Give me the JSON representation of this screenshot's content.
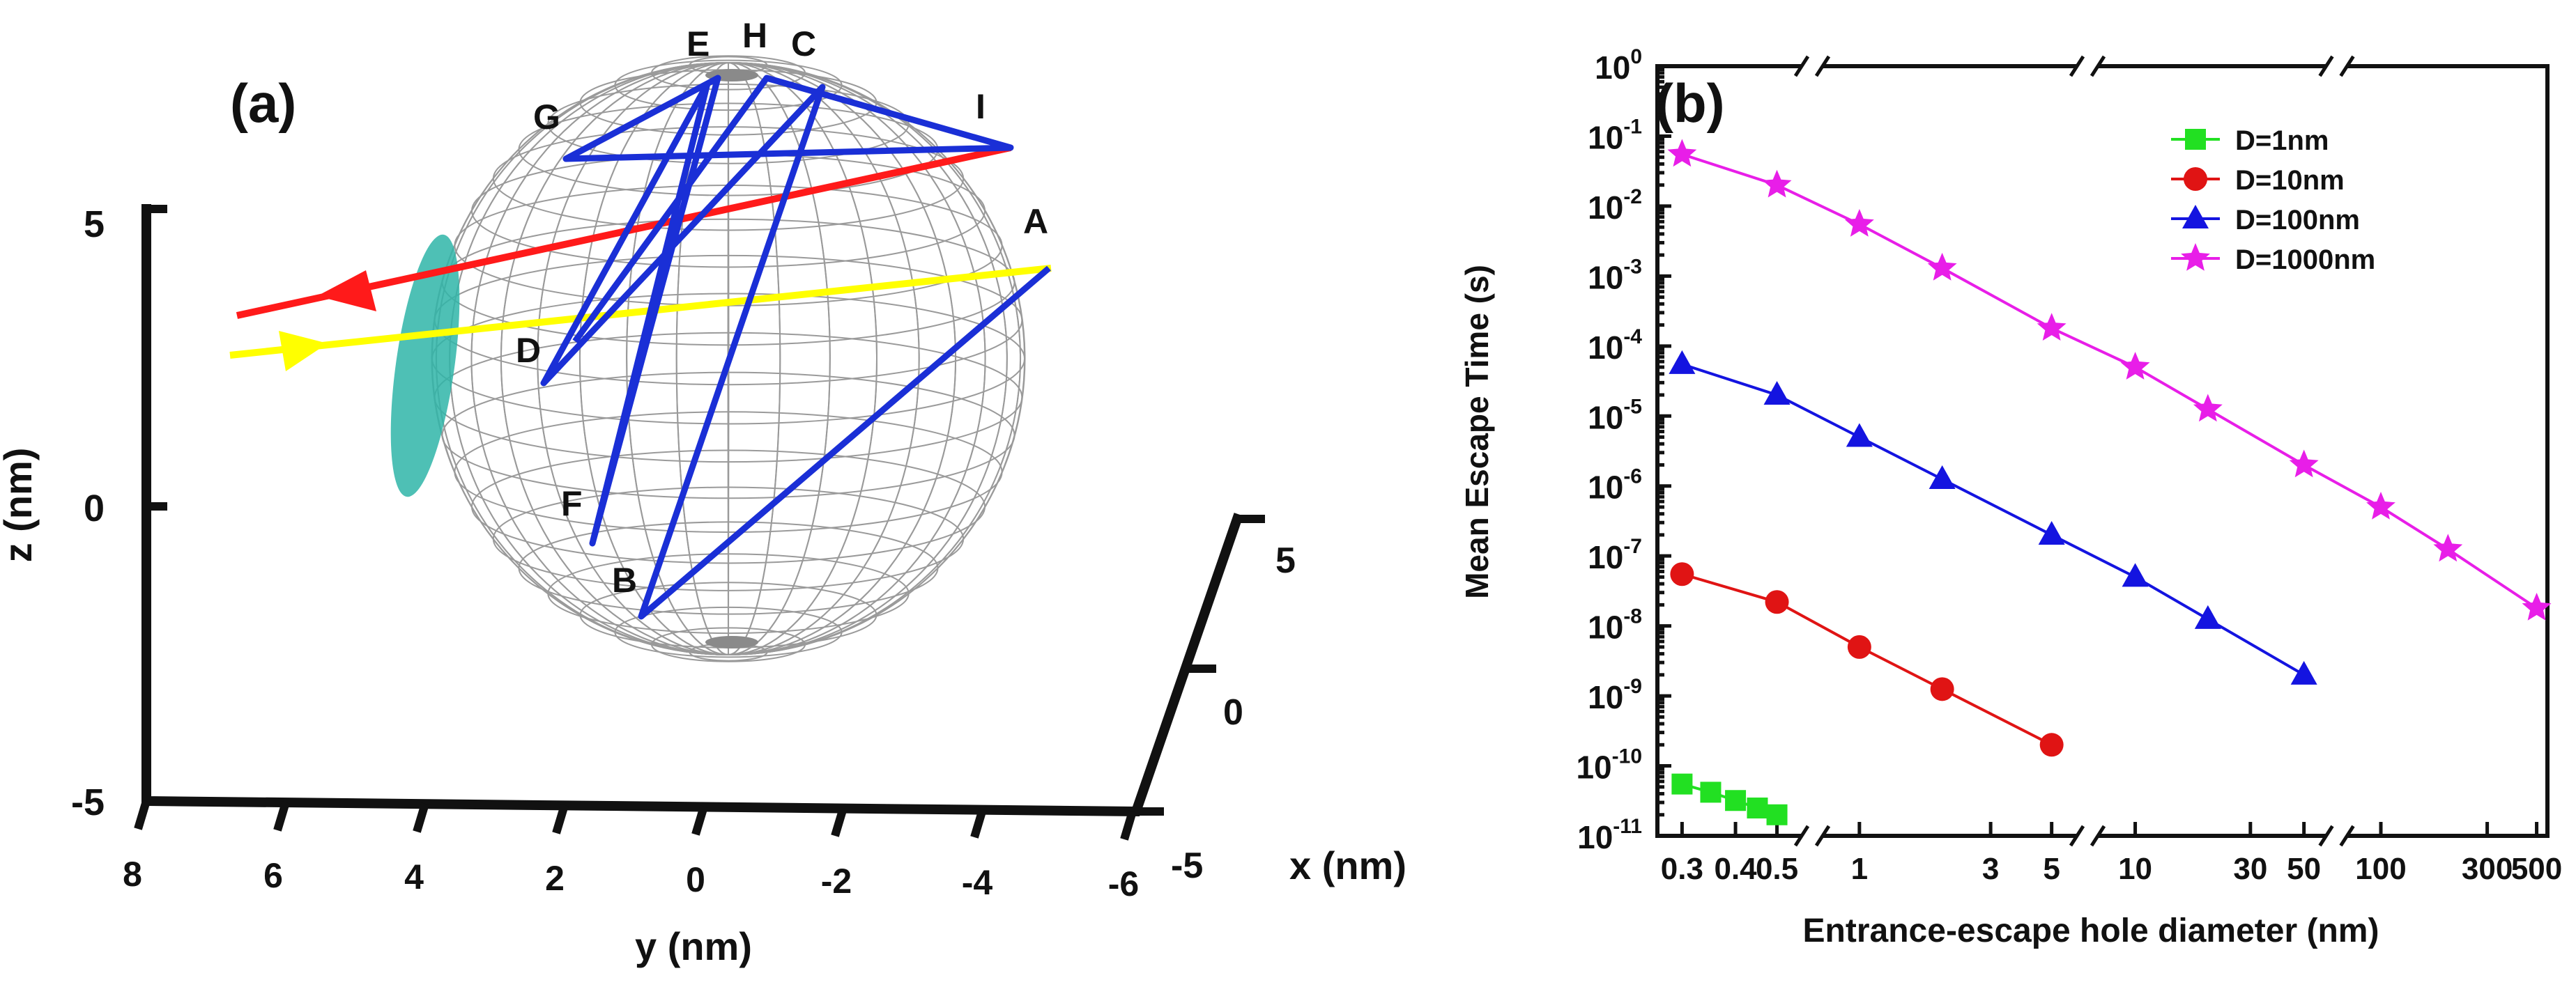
{
  "panel_a": {
    "label": "(a)",
    "z_axis": {
      "title": "z (nm)",
      "ticks": [
        "5",
        "0",
        "-5"
      ]
    },
    "y_axis": {
      "title": "y (nm)",
      "ticks": [
        "8",
        "6",
        "4",
        "2",
        "0",
        "-2",
        "-4",
        "-6"
      ]
    },
    "x_axis": {
      "title": "x (nm)",
      "ticks": [
        "5",
        "0",
        "-5"
      ]
    },
    "points": [
      "E",
      "H",
      "C",
      "G",
      "I",
      "A",
      "D",
      "F",
      "B"
    ],
    "colors": {
      "incoming_beam": "#ffff00",
      "outgoing_beam": "#ff1a1a",
      "trajectory": "#1a2fd6",
      "hole": "#2fb5a8",
      "wireframe": "#9a9a9a"
    }
  },
  "chart_data": {
    "type": "scatter",
    "panel_label": "(b)",
    "title": "",
    "xlabel": "Entrance-escape hole diameter (nm)",
    "ylabel": "Mean Escape Time (s)",
    "xscale": "broken-axis",
    "xlim": [
      0.28,
      520
    ],
    "ylim": [
      1e-11,
      1
    ],
    "yscale": "log",
    "x_segments": [
      {
        "range": [
          0.28,
          0.52
        ],
        "ticks": [
          0.3,
          0.4,
          0.5
        ],
        "labels": [
          "0.3",
          "0.4",
          "0.5"
        ]
      },
      {
        "range": [
          0.85,
          5.5
        ],
        "ticks": [
          1,
          3,
          5
        ],
        "labels": [
          "1",
          "3",
          "5"
        ]
      },
      {
        "range": [
          8,
          55
        ],
        "ticks": [
          10,
          30,
          50
        ],
        "labels": [
          "10",
          "30",
          "50"
        ]
      },
      {
        "range": [
          80,
          520
        ],
        "ticks": [
          100,
          300,
          500
        ],
        "labels": [
          "100",
          "300",
          "500"
        ]
      }
    ],
    "y_tick_exponents": [
      0,
      -1,
      -2,
      -3,
      -4,
      -5,
      -6,
      -7,
      -8,
      -9,
      -10,
      -11
    ],
    "y_tick_base": "10",
    "legend_position": "top-right",
    "series": [
      {
        "name": "D=1nm",
        "color": "#22e022",
        "marker": "square",
        "x": [
          0.3,
          0.35,
          0.4,
          0.45,
          0.5
        ],
        "y": [
          5.5e-11,
          4.2e-11,
          3.2e-11,
          2.5e-11,
          2e-11
        ]
      },
      {
        "name": "D=10nm",
        "color": "#e01414",
        "marker": "circle",
        "x": [
          0.3,
          0.5,
          1,
          2,
          5
        ],
        "y": [
          5.5e-08,
          2.2e-08,
          5e-09,
          1.25e-09,
          2e-10
        ]
      },
      {
        "name": "D=100nm",
        "color": "#1414e0",
        "marker": "triangle",
        "x": [
          0.3,
          0.5,
          1,
          2,
          5,
          10,
          20,
          50
        ],
        "y": [
          5.5e-05,
          2e-05,
          5e-06,
          1.25e-06,
          2e-07,
          5e-08,
          1.25e-08,
          2e-09
        ]
      },
      {
        "name": "D=1000nm",
        "color": "#e81ee8",
        "marker": "star",
        "x": [
          0.3,
          0.5,
          1,
          2,
          5,
          10,
          20,
          50,
          100,
          200,
          500
        ],
        "y": [
          0.055,
          0.02,
          0.0055,
          0.0013,
          0.00018,
          5e-05,
          1.25e-05,
          2e-06,
          5e-07,
          1.25e-07,
          1.8e-08
        ]
      }
    ]
  }
}
